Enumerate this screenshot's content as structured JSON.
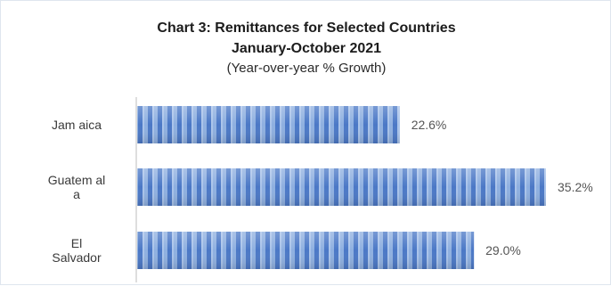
{
  "chart_data": {
    "type": "bar",
    "orientation": "horizontal",
    "title": "Chart 3: Remittances for Selected Countries",
    "subtitle": "January-October 2021",
    "unit_note": "(Year-over-year % Growth)",
    "categories": [
      [
        "Jam aica"
      ],
      [
        "Guatem al",
        "a"
      ],
      [
        "El",
        "Salvador"
      ]
    ],
    "values": [
      22.6,
      35.2,
      29.0
    ],
    "value_labels": [
      "22.6%",
      "35.2%",
      "29.0%"
    ],
    "xlim": [
      0,
      36
    ],
    "grid": false,
    "legend": "none",
    "bar_color": "#7fa6dc",
    "bar_stripe_color": "#3f6fbf"
  }
}
